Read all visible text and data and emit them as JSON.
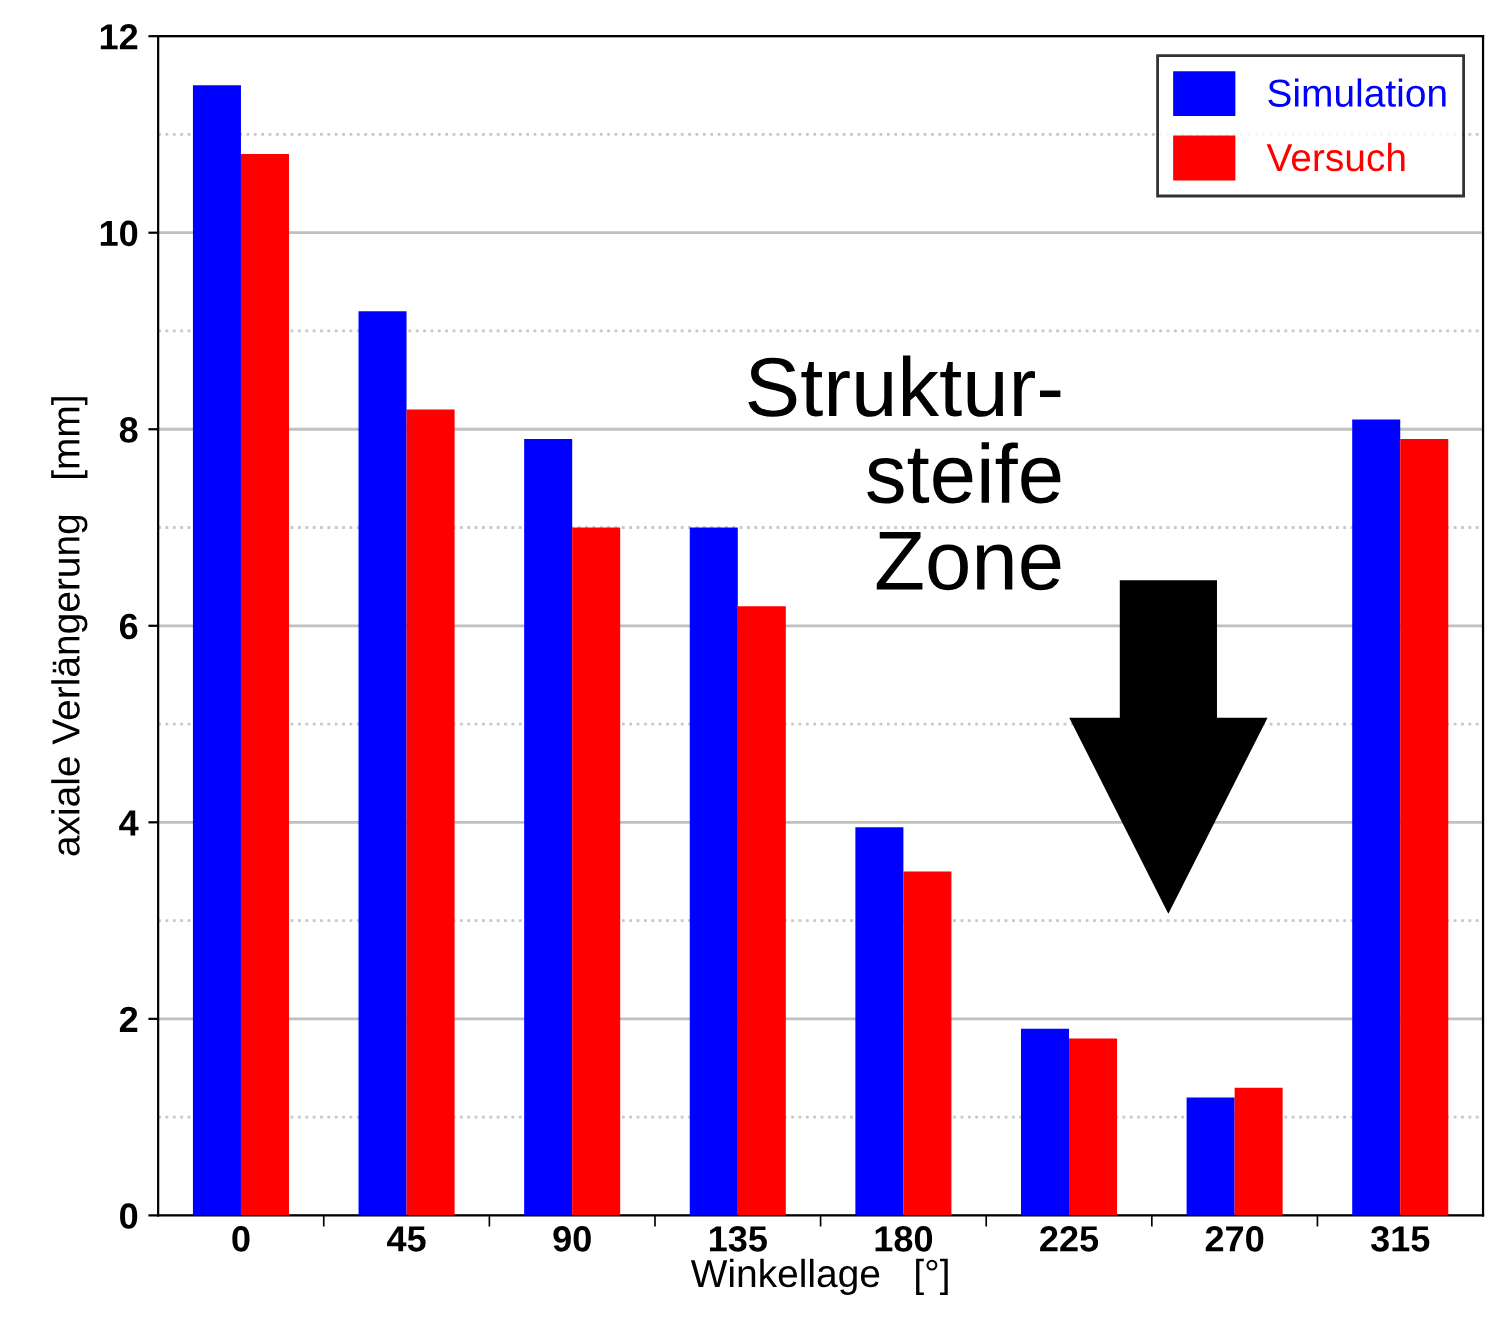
{
  "chart_data": {
    "type": "bar",
    "xlabel": "Winkellage   [°]",
    "ylabel": "axiale Verlängerung   [mm]",
    "categories": [
      "0",
      "45",
      "90",
      "135",
      "180",
      "225",
      "270",
      "315"
    ],
    "series": [
      {
        "name": "Simulation",
        "color": "#0000ff",
        "values": [
          11.5,
          9.2,
          7.9,
          7.0,
          3.95,
          1.9,
          1.2,
          8.1
        ]
      },
      {
        "name": "Versuch",
        "color": "#ff0000",
        "values": [
          10.8,
          8.2,
          7.0,
          6.2,
          3.5,
          1.8,
          1.3,
          7.9
        ]
      }
    ],
    "ylim": [
      0,
      12
    ],
    "yticks": [
      0,
      2,
      4,
      6,
      8,
      10,
      12
    ],
    "grid": "y",
    "legend": "top right",
    "annotations": [
      "Struktur-\nsteife\nZone"
    ]
  }
}
